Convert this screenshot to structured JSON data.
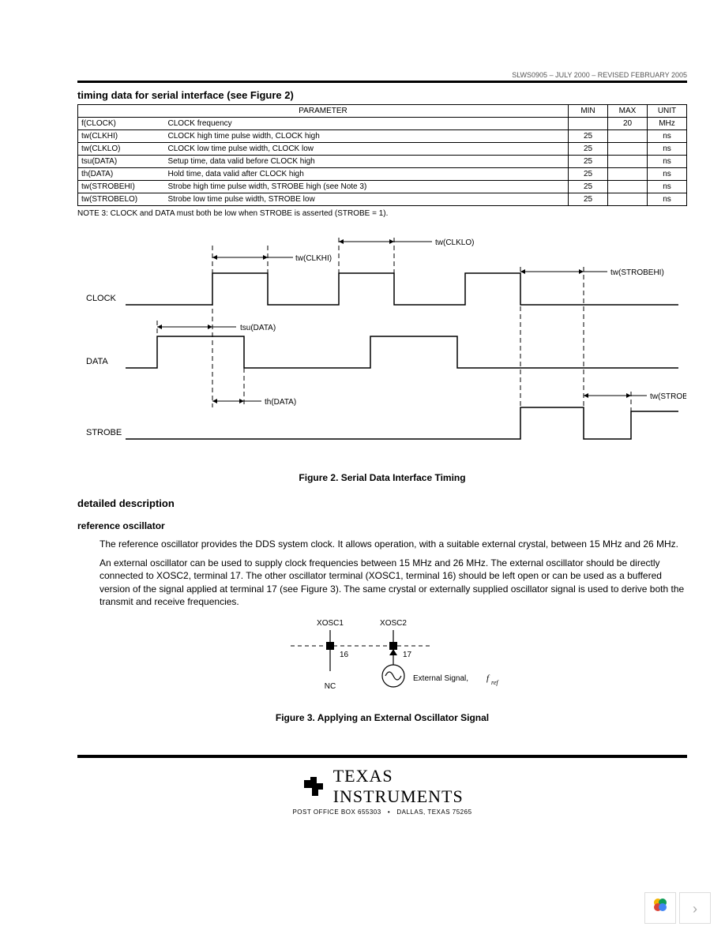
{
  "doc_id": "SLWS0905 – JULY 2000 – REVISED FEBRUARY 2005",
  "heading_timing": "timing data for serial interface (see Figure 2)",
  "table": {
    "headers": {
      "param": "PARAMETER",
      "min": "MIN",
      "max": "MAX",
      "unit": "UNIT"
    },
    "col_widths": {
      "sym": 110,
      "param": 470,
      "min": 50,
      "max": 50,
      "unit": 50
    },
    "rows": [
      {
        "sym": "f(CLOCK)",
        "param": "CLOCK frequency",
        "min": "",
        "max": "20",
        "unit": "MHz"
      },
      {
        "sym": "tw(CLKHI)",
        "param": "CLOCK high time pulse width, CLOCK high",
        "min": "25",
        "max": "",
        "unit": "ns"
      },
      {
        "sym": "tw(CLKLO)",
        "param": "CLOCK low time pulse width, CLOCK low",
        "min": "25",
        "max": "",
        "unit": "ns"
      },
      {
        "sym": "tsu(DATA)",
        "param": "Setup time, data valid before CLOCK high",
        "min": "25",
        "max": "",
        "unit": "ns"
      },
      {
        "sym": "th(DATA)",
        "param": "Hold time, data valid after CLOCK high",
        "min": "25",
        "max": "",
        "unit": "ns"
      },
      {
        "sym": "tw(STROBEHI)",
        "param": "Strobe high time pulse width, STROBE high (see Note 3)",
        "min": "25",
        "max": "",
        "unit": "ns"
      },
      {
        "sym": "tw(STROBELO)",
        "param": "Strobe low time pulse width, STROBE low",
        "min": "25",
        "max": "",
        "unit": "ns"
      }
    ]
  },
  "note3": "NOTE 3: CLOCK and DATA must both be low when STROBE is asserted (STROBE = 1).",
  "fig2": {
    "caption": "Figure 2. Serial Data Interface Timing",
    "labels": {
      "clock": "CLOCK",
      "data": "DATA",
      "strobe": "STROBE",
      "tw_clkhi": "tw(CLKHI)",
      "tw_clklo": "tw(CLKLO)",
      "tsu_data": "tsu(DATA)",
      "th_data": "th(DATA)",
      "tw_strobehi": "tw(STROBEHI)",
      "tw_strobelo": "tw(STROBELO)"
    },
    "style": {
      "line_color": "#000000",
      "dash": "6,4",
      "font_size": 11,
      "stroke_width": 1.5
    }
  },
  "detailed_heading": "detailed description",
  "ref_osc_heading": "reference oscillator",
  "para1": "The reference oscillator provides the DDS system clock. It allows operation, with a suitable external crystal, between 15 MHz and 26 MHz.",
  "para2": "An external oscillator can be used to supply clock frequencies between 15 MHz and 26 MHz. The external oscillator should be directly connected to XOSC2, terminal 17. The other oscillator terminal (XOSC1, terminal 16) should be left open or can be used as a buffered version of the signal applied at terminal 17 (see Figure 3). The same crystal or externally supplied oscillator signal is used to derive both the transmit and receive frequencies.",
  "fig3": {
    "caption": "Figure 3. Applying an External Oscillator Signal",
    "labels": {
      "xosc1": "XOSC1",
      "xosc2": "XOSC2",
      "pin16": "16",
      "pin17": "17",
      "nc": "NC",
      "ext_signal": "External Signal,",
      "fref": "f",
      "fref_sub": "ref"
    }
  },
  "footer": {
    "texas": "TEXAS",
    "instruments": "INSTRUMENTS",
    "addr_left": "POST OFFICE BOX 655303",
    "addr_right": "DALLAS, TEXAS 75265"
  }
}
